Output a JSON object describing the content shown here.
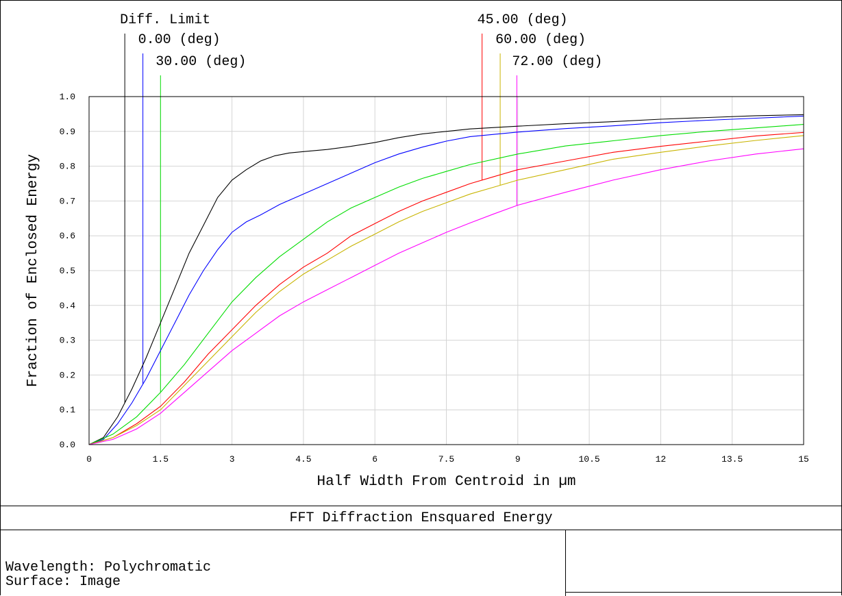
{
  "panel": {
    "title": "FFT Diffraction Ensquared Energy",
    "wavelength_line": "Wavelength: Polychromatic",
    "surface_line": "Surface: Image"
  },
  "chart_data": {
    "type": "line",
    "title": "FFT Diffraction Ensquared Energy",
    "xlabel": "Half Width From Centroid in µm",
    "ylabel": "Fraction of Enclosed Energy",
    "xlim": [
      0,
      15
    ],
    "ylim": [
      0,
      1.0
    ],
    "xticks": [
      "0",
      "1.5",
      "3",
      "4.5",
      "6",
      "7.5",
      "9",
      "10.5",
      "12",
      "13.5",
      "15"
    ],
    "yticks": [
      "0.0",
      "0.1",
      "0.2",
      "0.3",
      "0.4",
      "0.5",
      "0.6",
      "0.7",
      "0.8",
      "0.9",
      "1.0"
    ],
    "grid": true,
    "series": [
      {
        "name": "Diff. Limit",
        "color": "#000000",
        "marker_x": 0.75,
        "x": [
          0,
          0.3,
          0.6,
          0.9,
          1.2,
          1.5,
          1.8,
          2.1,
          2.4,
          2.7,
          3.0,
          3.3,
          3.6,
          3.9,
          4.2,
          4.5,
          5.0,
          5.5,
          6.0,
          6.5,
          7.0,
          7.5,
          8.0,
          9.0,
          10.0,
          11.0,
          12.0,
          13.0,
          14.0,
          15.0
        ],
        "y": [
          0,
          0.02,
          0.08,
          0.16,
          0.25,
          0.35,
          0.45,
          0.55,
          0.63,
          0.71,
          0.76,
          0.79,
          0.815,
          0.83,
          0.838,
          0.842,
          0.848,
          0.857,
          0.868,
          0.882,
          0.893,
          0.9,
          0.907,
          0.915,
          0.922,
          0.928,
          0.935,
          0.94,
          0.945,
          0.948
        ]
      },
      {
        "name": "0.00 (deg)",
        "color": "#0000ff",
        "marker_x": 1.13,
        "x": [
          0,
          0.3,
          0.6,
          0.9,
          1.2,
          1.5,
          1.8,
          2.1,
          2.4,
          2.7,
          3.0,
          3.3,
          3.6,
          4.0,
          4.5,
          5.0,
          5.5,
          6.0,
          6.5,
          7.0,
          7.5,
          8.0,
          9.0,
          10.0,
          11.0,
          12.0,
          13.0,
          14.0,
          15.0
        ],
        "y": [
          0,
          0.015,
          0.06,
          0.12,
          0.19,
          0.27,
          0.35,
          0.43,
          0.5,
          0.56,
          0.61,
          0.64,
          0.66,
          0.69,
          0.72,
          0.75,
          0.78,
          0.81,
          0.835,
          0.855,
          0.872,
          0.885,
          0.898,
          0.908,
          0.916,
          0.925,
          0.932,
          0.938,
          0.944
        ]
      },
      {
        "name": "30.00 (deg)",
        "color": "#00dd00",
        "marker_x": 1.5,
        "x": [
          0,
          0.5,
          1.0,
          1.5,
          2.0,
          2.5,
          3.0,
          3.5,
          4.0,
          4.5,
          5.0,
          5.5,
          6.0,
          6.5,
          7.0,
          7.5,
          8.0,
          9.0,
          10.0,
          11.0,
          12.0,
          13.0,
          14.0,
          15.0
        ],
        "y": [
          0,
          0.03,
          0.08,
          0.15,
          0.23,
          0.32,
          0.41,
          0.48,
          0.54,
          0.59,
          0.64,
          0.68,
          0.71,
          0.74,
          0.765,
          0.785,
          0.805,
          0.835,
          0.858,
          0.873,
          0.888,
          0.9,
          0.91,
          0.92
        ]
      },
      {
        "name": "45.00 (deg)",
        "color": "#ff0000",
        "marker_x": 8.25,
        "x": [
          0,
          0.5,
          1.0,
          1.5,
          2.0,
          2.5,
          3.0,
          3.5,
          4.0,
          4.5,
          5.0,
          5.5,
          6.0,
          6.5,
          7.0,
          7.5,
          8.0,
          8.5,
          9.0,
          10.0,
          11.0,
          12.0,
          13.0,
          14.0,
          15.0
        ],
        "y": [
          0,
          0.02,
          0.06,
          0.11,
          0.18,
          0.26,
          0.33,
          0.4,
          0.46,
          0.51,
          0.55,
          0.6,
          0.635,
          0.67,
          0.7,
          0.725,
          0.75,
          0.77,
          0.79,
          0.815,
          0.84,
          0.857,
          0.872,
          0.887,
          0.897
        ]
      },
      {
        "name": "60.00 (deg)",
        "color": "#c8b400",
        "marker_x": 8.63,
        "x": [
          0,
          0.5,
          1.0,
          1.5,
          2.0,
          2.5,
          3.0,
          3.5,
          4.0,
          4.5,
          5.0,
          5.5,
          6.0,
          6.5,
          7.0,
          7.5,
          8.0,
          8.5,
          9.0,
          10.0,
          11.0,
          12.0,
          13.0,
          14.0,
          15.0
        ],
        "y": [
          0,
          0.02,
          0.055,
          0.1,
          0.17,
          0.24,
          0.31,
          0.38,
          0.44,
          0.49,
          0.53,
          0.57,
          0.605,
          0.64,
          0.67,
          0.695,
          0.72,
          0.74,
          0.76,
          0.79,
          0.82,
          0.84,
          0.858,
          0.874,
          0.888
        ]
      },
      {
        "name": "72.00 (deg)",
        "color": "#ff00ff",
        "marker_x": 8.98,
        "x": [
          0,
          0.5,
          1.0,
          1.5,
          2.0,
          2.5,
          3.0,
          3.5,
          4.0,
          4.5,
          5.0,
          5.5,
          6.0,
          6.5,
          7.0,
          7.5,
          8.0,
          8.5,
          9.0,
          10.0,
          11.0,
          12.0,
          13.0,
          14.0,
          15.0
        ],
        "y": [
          0,
          0.015,
          0.045,
          0.09,
          0.15,
          0.21,
          0.27,
          0.32,
          0.37,
          0.41,
          0.445,
          0.48,
          0.515,
          0.55,
          0.58,
          0.61,
          0.637,
          0.663,
          0.688,
          0.725,
          0.76,
          0.79,
          0.815,
          0.835,
          0.85
        ]
      }
    ]
  }
}
